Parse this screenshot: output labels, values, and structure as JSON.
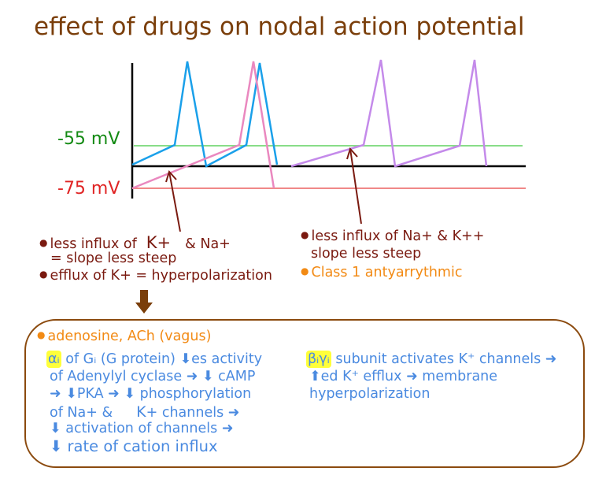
{
  "title": "effect of drugs on nodal action potential",
  "labels": {
    "minus55": "-55 mV",
    "minus75": "-75 mV"
  },
  "left_notes": {
    "line1_a": "less influx of",
    "line1_b": "K+",
    "line1_c": "& Na+",
    "line2": "= slope less steep",
    "line3": "efflux of K+ = hyperpolarization"
  },
  "right_notes": {
    "line1": "less influx of Na+ & K++",
    "line2": "slope less steep",
    "line3": "Class 1 antyarrythmic"
  },
  "box": {
    "heading": "adenosine, ACh (vagus)",
    "alpha_tag": "αᵢ",
    "alpha_l1": "of Gᵢ (G protein) ⬇es activity",
    "alpha_l2": "of Adenylyl cyclase ➜ ⬇ cAMP",
    "alpha_l3": "➜ ⬇PKA ➜ ⬇ phosphorylation",
    "alpha_l4a": "of Na+ &",
    "alpha_l4b": "K",
    "alpha_l4c": "+ channels ➜",
    "alpha_l5": "⬇ activation of channels ➜",
    "alpha_l6": "⬇ rate of cation influx",
    "beta_tag": "βᵢγᵢ",
    "beta_l1": "subunit activates K⁺ channels ➜",
    "beta_l2": "⬆ed K⁺ efflux ➜ membrane",
    "beta_l3": "hyperpolarization"
  },
  "colors": {
    "title": "#7a3e0a",
    "normal_trace": "#1aa0ea",
    "hyperpolarized_trace": "#ea88bf",
    "class1_trace": "#c48aea",
    "threshold_line": "#88dd88",
    "rest_line": "#f08888",
    "annotation_arrow": "#7a1a10",
    "box_border": "#8b4a0e",
    "highlight": "#ffff3a"
  }
}
